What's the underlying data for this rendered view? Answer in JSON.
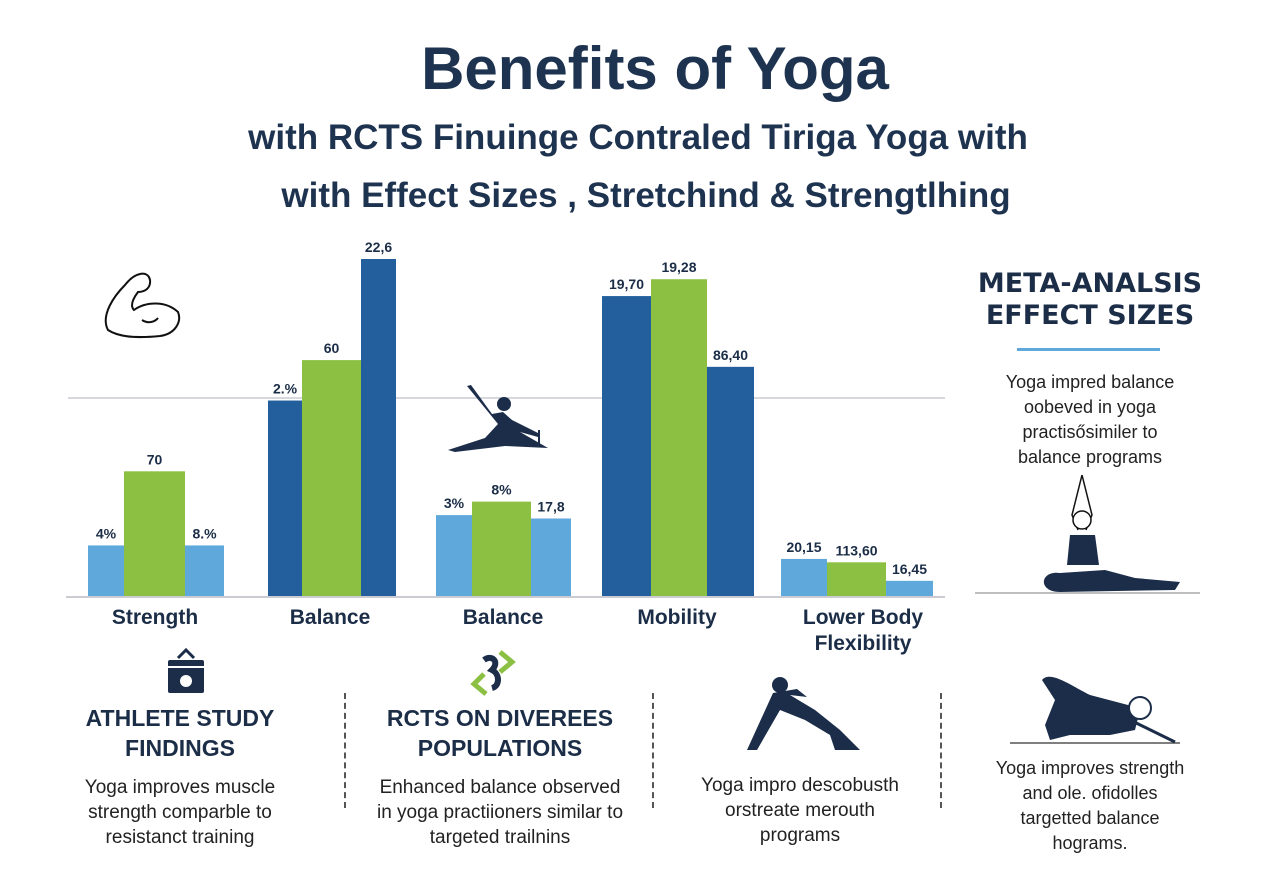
{
  "title": "Benefits of Yoga",
  "subtitle1": "with RCTS Finuinge Contraled Tiriga Yoga with",
  "subtitle2": "with Effect Sizes , Stretchind & Strengtlhing",
  "chart_data": {
    "type": "bar",
    "categories": [
      "Strength",
      "Balance",
      "Balance",
      "Mobility",
      "Lower Body Flexibility"
    ],
    "bars": [
      [
        {
          "label": "4%",
          "value": 15,
          "color": "#5fa8dc"
        },
        {
          "label": "70",
          "value": 37,
          "color": "#8cc043"
        },
        {
          "label": "8.%",
          "value": 15,
          "color": "#5fa8dc"
        }
      ],
      [
        {
          "label": "2.%",
          "value": 58,
          "color": "#225f9c"
        },
        {
          "label": "60",
          "value": 70,
          "color": "#8cc043"
        },
        {
          "label": "22,6",
          "value": 100,
          "color": "#225f9c"
        }
      ],
      [
        {
          "label": "3%",
          "value": 24,
          "color": "#5fa8dc"
        },
        {
          "label": "8%",
          "value": 28,
          "color": "#8cc043"
        },
        {
          "label": "17,8",
          "value": 23,
          "color": "#5fa8dc"
        }
      ],
      [
        {
          "label": "19,70",
          "value": 89,
          "color": "#225f9c"
        },
        {
          "label": "19,28",
          "value": 94,
          "color": "#8cc043"
        },
        {
          "label": "86,40",
          "value": 68,
          "color": "#225f9c"
        }
      ],
      [
        {
          "label": "20,15",
          "value": 11,
          "color": "#5fa8dc"
        },
        {
          "label": "113,60",
          "value": 10,
          "color": "#8cc043"
        },
        {
          "label": "16,45",
          "value": 4.5,
          "color": "#5fa8dc"
        }
      ]
    ],
    "ylim": [
      0,
      100
    ],
    "grid": true
  },
  "meta": {
    "heading1": "META-ANALSIS",
    "heading2": "EFFECT SIZES",
    "text": [
      "Yoga impred balance",
      "oobeved in yoga",
      "practisősimiler to",
      "balance programs"
    ],
    "text2": [
      "Yoga improves strength",
      "and ole. ofidolles",
      "targetted balance",
      "hograms."
    ]
  },
  "sections": [
    {
      "heading": [
        "ATHLETE STUDY",
        "FINDINGS"
      ],
      "text": [
        "Yoga improves muscle",
        "strength comparble to",
        "resistanct training"
      ]
    },
    {
      "heading": [
        "RCTS ON DIVEREES",
        "POPULATIONS"
      ],
      "text": [
        "Enhanced balance observed",
        "in yoga practiioners similar to",
        "targeted trailnins"
      ]
    },
    {
      "heading": [],
      "text": [
        "Yoga impro descobusth",
        "orstreate merouth",
        "programs"
      ]
    }
  ]
}
